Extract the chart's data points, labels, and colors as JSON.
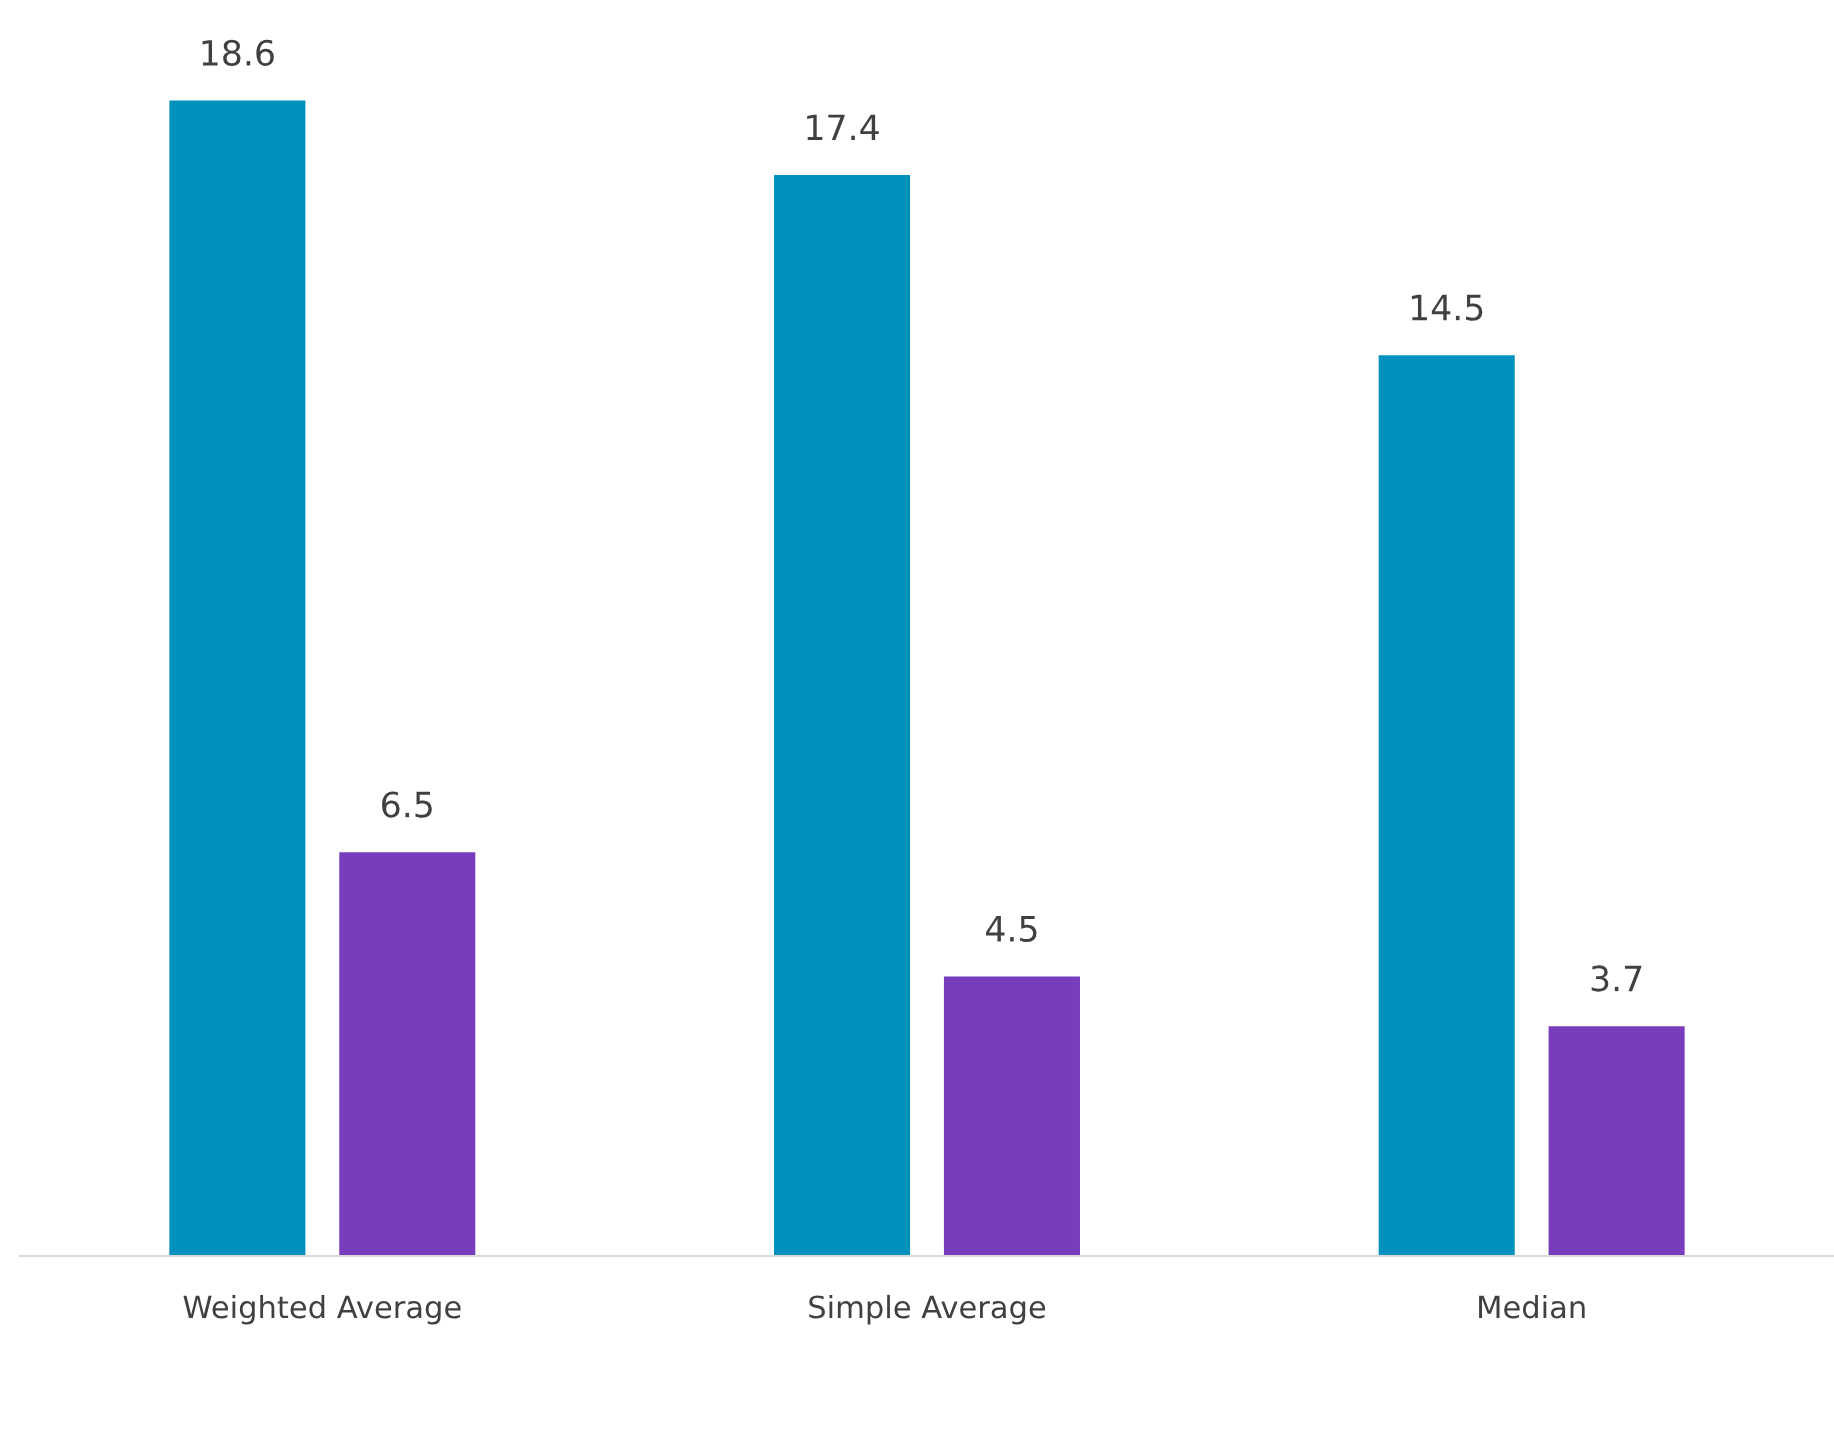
{
  "chart_data": {
    "type": "bar",
    "categories": [
      "Weighted Average",
      "Simple Average",
      "Median"
    ],
    "series": [
      {
        "color": "#0091bd",
        "values": [
          18.6,
          17.4,
          14.5
        ]
      },
      {
        "color": "#773dbd",
        "values": [
          6.5,
          4.5,
          3.7
        ]
      }
    ],
    "data_labels": true
  }
}
